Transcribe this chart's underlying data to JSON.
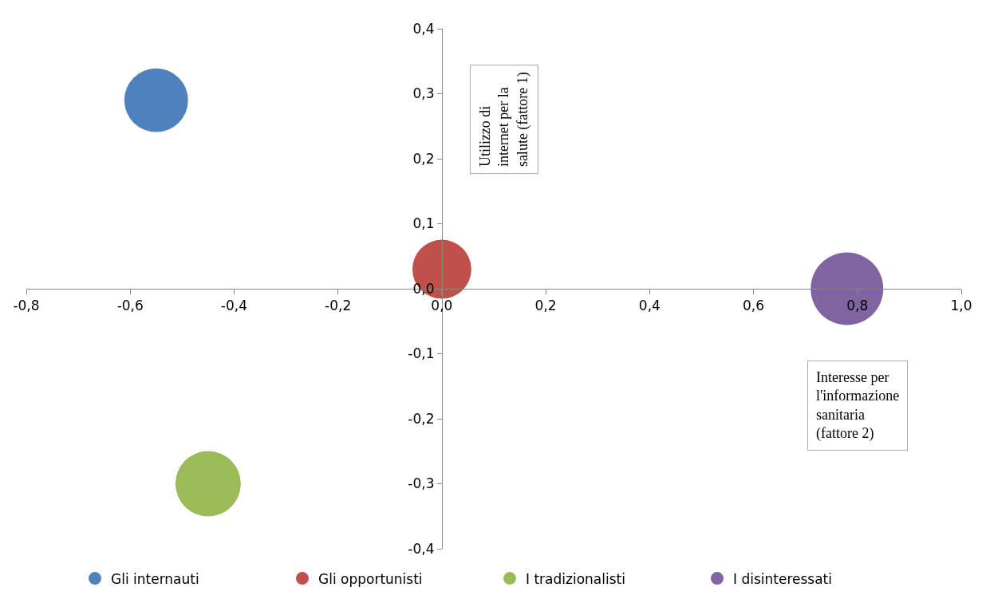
{
  "chart_data": {
    "type": "bubble",
    "xlabel": "Interesse per l'informazione sanitaria (fattore 2)",
    "ylabel": "Utilizzo di internet per la salute (fattore 1)",
    "series": [
      {
        "name": "Gli internauti",
        "color": "#4f81bd",
        "x": [
          -0.55
        ],
        "values": [
          0.29
        ],
        "sizes": [
          0.77
        ]
      },
      {
        "name": "Gli opportunisti",
        "color": "#c0504d",
        "x": [
          0.0
        ],
        "values": [
          0.03
        ],
        "sizes": [
          0.66
        ]
      },
      {
        "name": "I tradizionalisti",
        "color": "#9bbb59",
        "x": [
          -0.45
        ],
        "values": [
          -0.3
        ],
        "sizes": [
          0.81
        ]
      },
      {
        "name": "I disinteressati",
        "color": "#8064a2",
        "x": [
          0.78
        ],
        "values": [
          0.0
        ],
        "sizes": [
          1
        ]
      }
    ],
    "xlim": [
      -0.8,
      1.0
    ],
    "xticks": [
      {
        "value": -0.8,
        "label": "-0,8"
      },
      {
        "value": -0.6,
        "label": "-0,6"
      },
      {
        "value": -0.4,
        "label": "-0,4"
      },
      {
        "value": -0.2,
        "label": "-0,2"
      },
      {
        "value": 0,
        "label": "0,0"
      },
      {
        "value": 0.2,
        "label": "0,2"
      },
      {
        "value": 0.4,
        "label": "0,4"
      },
      {
        "value": 0.6,
        "label": "0,6"
      },
      {
        "value": 0.8,
        "label": "0,8"
      },
      {
        "value": 1.0,
        "label": "1,0"
      }
    ],
    "ylim": [
      -0.4,
      0.4
    ],
    "yticks": [
      {
        "value": -0.4,
        "label": "-0,4"
      },
      {
        "value": -0.3,
        "label": "-0,3"
      },
      {
        "value": -0.2,
        "label": "-0,2"
      },
      {
        "value": -0.1,
        "label": "-0,1"
      },
      {
        "value": 0,
        "label": "0,0"
      },
      {
        "value": 0.1,
        "label": "0,1"
      },
      {
        "value": 0.2,
        "label": "0,2"
      },
      {
        "value": 0.3,
        "label": "0,3"
      },
      {
        "value": 0.4,
        "label": "0,4"
      }
    ],
    "legend": "bottom",
    "marker": "circle"
  }
}
